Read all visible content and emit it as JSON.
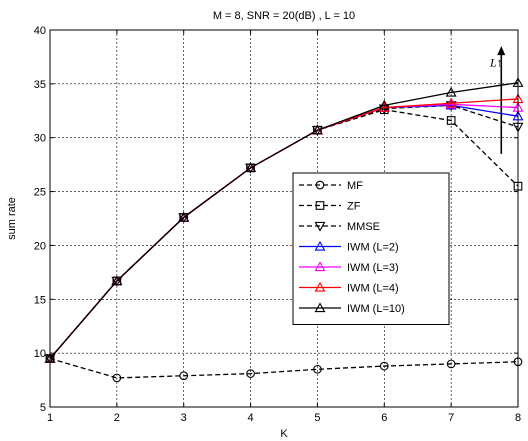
{
  "chart_data": {
    "type": "line",
    "title": "M = 8, SNR = 20(dB) , L = 10",
    "xlabel": "K",
    "ylabel": "sum rate",
    "x": [
      1,
      2,
      3,
      4,
      5,
      6,
      7,
      8
    ],
    "xlim": [
      1,
      8
    ],
    "ylim": [
      5,
      40
    ],
    "xticks": [
      1,
      2,
      3,
      4,
      5,
      6,
      7,
      8
    ],
    "yticks": [
      5,
      10,
      15,
      20,
      25,
      30,
      35,
      40
    ],
    "grid": true,
    "legend_position": "center-right",
    "series": [
      {
        "name": "MF",
        "color": "#000000",
        "dash": "dashed",
        "marker": "circle",
        "values": [
          9.5,
          7.7,
          7.9,
          8.1,
          8.5,
          8.8,
          9.0,
          9.2
        ]
      },
      {
        "name": "ZF",
        "color": "#000000",
        "dash": "dashed",
        "marker": "square",
        "values": [
          9.5,
          16.7,
          22.6,
          27.2,
          30.7,
          32.6,
          31.6,
          25.5
        ]
      },
      {
        "name": "MMSE",
        "color": "#000000",
        "dash": "dashed",
        "marker": "triangle-down",
        "values": [
          9.5,
          16.7,
          22.6,
          27.2,
          30.7,
          32.7,
          33.0,
          31.0
        ]
      },
      {
        "name": "IWM (L=2)",
        "color": "#0000ff",
        "dash": "solid",
        "marker": "triangle-up",
        "values": [
          9.5,
          16.7,
          22.6,
          27.2,
          30.7,
          32.8,
          33.0,
          32.0
        ]
      },
      {
        "name": "IWM (L=3)",
        "color": "#ff00ff",
        "dash": "solid",
        "marker": "triangle-up",
        "values": [
          9.5,
          16.7,
          22.6,
          27.2,
          30.7,
          32.8,
          33.1,
          32.8
        ]
      },
      {
        "name": "IWM (L=4)",
        "color": "#ff0000",
        "dash": "solid",
        "marker": "triangle-up",
        "values": [
          9.5,
          16.7,
          22.6,
          27.2,
          30.7,
          32.8,
          33.2,
          33.6
        ]
      },
      {
        "name": "IWM (L=10)",
        "color": "#000000",
        "dash": "solid",
        "marker": "triangle-up",
        "values": [
          9.5,
          16.7,
          22.6,
          27.2,
          30.7,
          33.0,
          34.2,
          35.1
        ]
      }
    ],
    "annotations": [
      {
        "text": "L↑",
        "x": 7.8,
        "y": 36.6
      },
      {
        "type": "arrow",
        "x": 7.75,
        "y_from": 28.5,
        "y_to": 38.5
      }
    ]
  }
}
